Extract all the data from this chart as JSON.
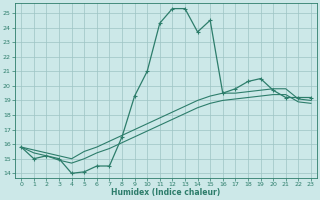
{
  "xlabel": "Humidex (Indice chaleur)",
  "x": [
    0,
    1,
    2,
    3,
    4,
    5,
    6,
    7,
    8,
    9,
    10,
    11,
    12,
    13,
    14,
    15,
    16,
    17,
    18,
    19,
    20,
    21,
    22,
    23
  ],
  "y_main": [
    15.8,
    15.0,
    15.2,
    15.0,
    14.0,
    14.1,
    14.5,
    14.5,
    16.5,
    19.3,
    21.0,
    24.3,
    25.3,
    25.3,
    23.7,
    24.5,
    19.5,
    19.8,
    20.3,
    20.5,
    19.7,
    19.2,
    19.2,
    19.2
  ],
  "y_line1": [
    15.8,
    15.6,
    15.4,
    15.2,
    15.0,
    15.5,
    15.8,
    16.2,
    16.6,
    17.0,
    17.4,
    17.8,
    18.2,
    18.6,
    19.0,
    19.3,
    19.5,
    19.5,
    19.6,
    19.7,
    19.8,
    19.8,
    19.1,
    19.0
  ],
  "y_line2": [
    15.8,
    15.4,
    15.2,
    14.9,
    14.7,
    15.0,
    15.4,
    15.7,
    16.1,
    16.5,
    16.9,
    17.3,
    17.7,
    18.1,
    18.5,
    18.8,
    19.0,
    19.1,
    19.2,
    19.3,
    19.4,
    19.4,
    18.9,
    18.8
  ],
  "line_color": "#2d7d6b",
  "bg_color": "#cce8e8",
  "grid_color": "#9dc4c4",
  "ylim": [
    13.7,
    25.7
  ],
  "yticks": [
    14,
    15,
    16,
    17,
    18,
    19,
    20,
    21,
    22,
    23,
    24,
    25
  ],
  "xlim": [
    -0.5,
    23.5
  ],
  "xticks": [
    0,
    1,
    2,
    3,
    4,
    5,
    6,
    7,
    8,
    9,
    10,
    11,
    12,
    13,
    14,
    15,
    16,
    17,
    18,
    19,
    20,
    21,
    22,
    23
  ]
}
